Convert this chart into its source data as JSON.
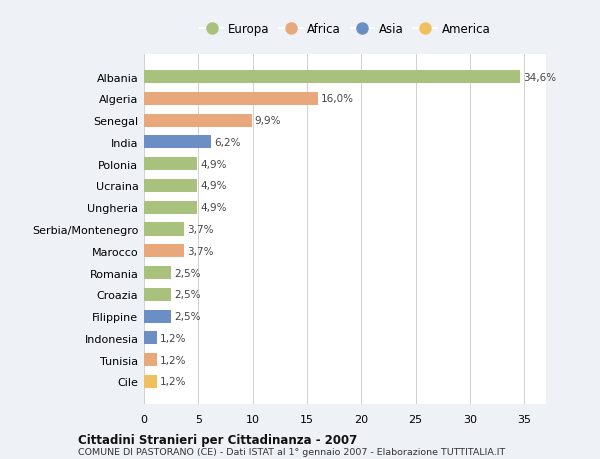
{
  "countries": [
    "Albania",
    "Algeria",
    "Senegal",
    "India",
    "Polonia",
    "Ucraina",
    "Ungheria",
    "Serbia/Montenegro",
    "Marocco",
    "Romania",
    "Croazia",
    "Filippine",
    "Indonesia",
    "Tunisia",
    "Cile"
  ],
  "values": [
    34.6,
    16.0,
    9.9,
    6.2,
    4.9,
    4.9,
    4.9,
    3.7,
    3.7,
    2.5,
    2.5,
    2.5,
    1.2,
    1.2,
    1.2
  ],
  "labels": [
    "34,6%",
    "16,0%",
    "9,9%",
    "6,2%",
    "4,9%",
    "4,9%",
    "4,9%",
    "3,7%",
    "3,7%",
    "2,5%",
    "2,5%",
    "2,5%",
    "1,2%",
    "1,2%",
    "1,2%"
  ],
  "continents": [
    "Europa",
    "Africa",
    "Africa",
    "Asia",
    "Europa",
    "Europa",
    "Europa",
    "Europa",
    "Africa",
    "Europa",
    "Europa",
    "Asia",
    "Asia",
    "Africa",
    "America"
  ],
  "continent_colors": {
    "Europa": "#a8c17c",
    "Africa": "#e8a87c",
    "Asia": "#6b8ec4",
    "America": "#f0c060"
  },
  "legend_order": [
    "Europa",
    "Africa",
    "Asia",
    "America"
  ],
  "title": "Cittadini Stranieri per Cittadinanza - 2007",
  "subtitle": "COMUNE DI PASTORANO (CE) - Dati ISTAT al 1° gennaio 2007 - Elaborazione TUTTITALIA.IT",
  "xlim": [
    0,
    37
  ],
  "xticks": [
    0,
    5,
    10,
    15,
    20,
    25,
    30,
    35
  ],
  "background_color": "#eef2f7",
  "bar_background": "#ffffff",
  "grid_color": "#d0d0d0"
}
